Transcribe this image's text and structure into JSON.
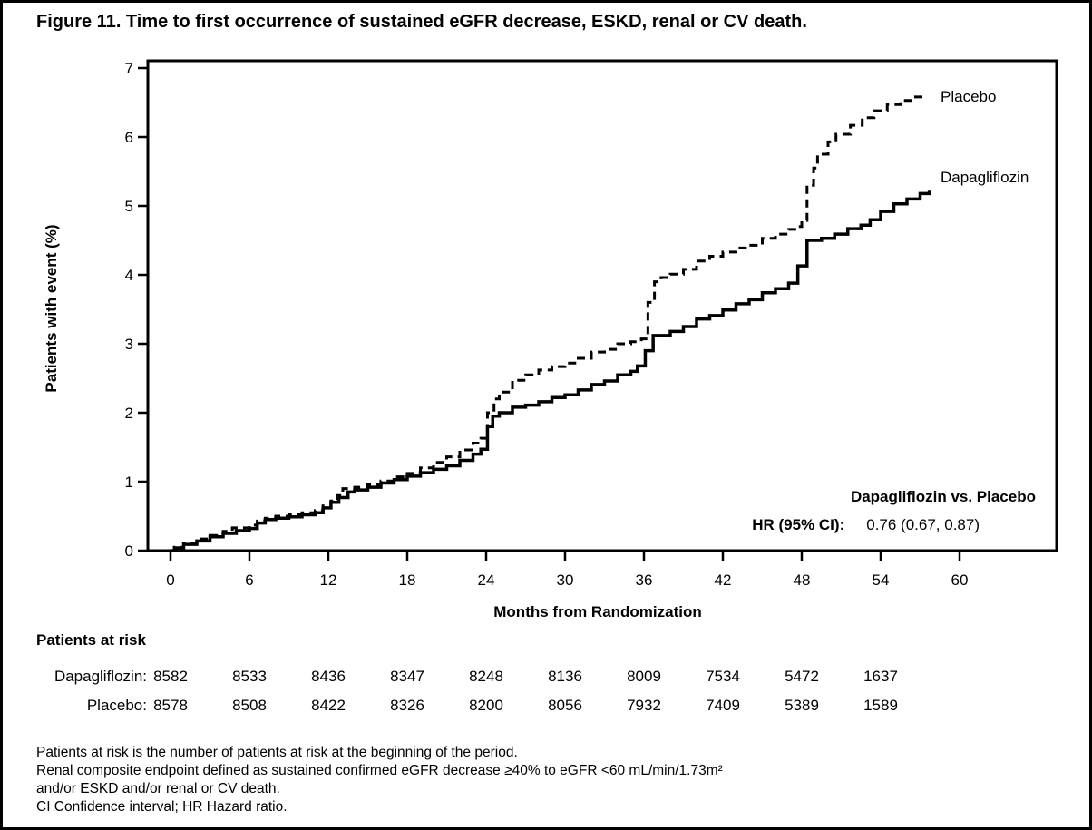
{
  "figure": {
    "title": "Figure 11. Time to first occurrence of sustained eGFR decrease, ESKD, renal or CV death."
  },
  "chart_data": {
    "type": "line",
    "subtype": "step",
    "title": "",
    "xlabel": "Months from Randomization",
    "ylabel": "Patients with event (%)",
    "xlim": [
      0,
      63
    ],
    "ylim": [
      0,
      7
    ],
    "x_ticks": [
      0,
      6,
      12,
      18,
      24,
      30,
      36,
      42,
      48,
      54,
      60
    ],
    "y_ticks": [
      0,
      1,
      2,
      3,
      4,
      5,
      6,
      7
    ],
    "grid": false,
    "legend_position": "right-of-curve-ends",
    "series": [
      {
        "name": "Placebo",
        "line_style": "dashed",
        "color": "#000000",
        "points": [
          [
            0,
            0
          ],
          [
            0.3,
            0.05
          ],
          [
            1,
            0.1
          ],
          [
            2,
            0.17
          ],
          [
            3,
            0.22
          ],
          [
            4,
            0.28
          ],
          [
            4.7,
            0.33
          ],
          [
            6,
            0.37
          ],
          [
            6.6,
            0.43
          ],
          [
            7.2,
            0.47
          ],
          [
            8,
            0.5
          ],
          [
            9,
            0.53
          ],
          [
            10,
            0.55
          ],
          [
            11,
            0.58
          ],
          [
            11.6,
            0.65
          ],
          [
            12.2,
            0.72
          ],
          [
            12.7,
            0.8
          ],
          [
            13.1,
            0.9
          ],
          [
            14,
            0.92
          ],
          [
            15,
            0.96
          ],
          [
            16,
            1.01
          ],
          [
            17,
            1.07
          ],
          [
            18,
            1.12
          ],
          [
            19,
            1.2
          ],
          [
            20,
            1.28
          ],
          [
            21,
            1.36
          ],
          [
            22,
            1.46
          ],
          [
            23,
            1.56
          ],
          [
            23.6,
            1.63
          ],
          [
            24.1,
            2.0
          ],
          [
            24.6,
            2.2
          ],
          [
            25,
            2.3
          ],
          [
            26,
            2.47
          ],
          [
            27,
            2.55
          ],
          [
            28,
            2.62
          ],
          [
            29,
            2.67
          ],
          [
            30,
            2.72
          ],
          [
            31,
            2.79
          ],
          [
            32,
            2.88
          ],
          [
            33,
            2.92
          ],
          [
            34,
            3.0
          ],
          [
            35,
            3.03
          ],
          [
            35.8,
            3.07
          ],
          [
            36.3,
            3.6
          ],
          [
            36.8,
            3.9
          ],
          [
            37.3,
            3.96
          ],
          [
            38,
            4.01
          ],
          [
            39,
            4.08
          ],
          [
            40,
            4.2
          ],
          [
            41,
            4.27
          ],
          [
            42,
            4.33
          ],
          [
            43,
            4.39
          ],
          [
            44,
            4.43
          ],
          [
            45,
            4.53
          ],
          [
            46,
            4.59
          ],
          [
            47,
            4.66
          ],
          [
            47.6,
            4.7
          ],
          [
            48,
            4.79
          ],
          [
            48.4,
            5.3
          ],
          [
            48.9,
            5.55
          ],
          [
            49.2,
            5.75
          ],
          [
            50,
            5.93
          ],
          [
            50.6,
            6.04
          ],
          [
            51.7,
            6.17
          ],
          [
            52.6,
            6.28
          ],
          [
            53.5,
            6.38
          ],
          [
            54.5,
            6.47
          ],
          [
            55.5,
            6.53
          ],
          [
            56.5,
            6.58
          ],
          [
            57.4,
            6.6
          ]
        ]
      },
      {
        "name": "Dapagliflozin",
        "line_style": "solid",
        "color": "#000000",
        "points": [
          [
            0,
            0
          ],
          [
            0.3,
            0.04
          ],
          [
            1,
            0.09
          ],
          [
            2,
            0.14
          ],
          [
            3,
            0.2
          ],
          [
            4,
            0.25
          ],
          [
            5,
            0.29
          ],
          [
            6,
            0.32
          ],
          [
            6.6,
            0.4
          ],
          [
            7.2,
            0.45
          ],
          [
            8,
            0.47
          ],
          [
            9,
            0.49
          ],
          [
            10,
            0.52
          ],
          [
            11,
            0.55
          ],
          [
            11.6,
            0.62
          ],
          [
            12.2,
            0.7
          ],
          [
            12.8,
            0.77
          ],
          [
            13.5,
            0.85
          ],
          [
            14,
            0.88
          ],
          [
            15,
            0.92
          ],
          [
            16,
            0.98
          ],
          [
            17,
            1.03
          ],
          [
            18,
            1.08
          ],
          [
            19,
            1.13
          ],
          [
            20,
            1.18
          ],
          [
            21,
            1.23
          ],
          [
            22,
            1.31
          ],
          [
            23,
            1.4
          ],
          [
            23.6,
            1.47
          ],
          [
            24.1,
            1.8
          ],
          [
            24.5,
            1.95
          ],
          [
            25,
            2.0
          ],
          [
            26,
            2.08
          ],
          [
            27,
            2.11
          ],
          [
            28,
            2.16
          ],
          [
            29,
            2.22
          ],
          [
            30,
            2.26
          ],
          [
            31,
            2.33
          ],
          [
            32,
            2.41
          ],
          [
            33,
            2.46
          ],
          [
            34,
            2.55
          ],
          [
            35,
            2.6
          ],
          [
            35.5,
            2.68
          ],
          [
            36.1,
            2.9
          ],
          [
            36.7,
            3.12
          ],
          [
            38,
            3.18
          ],
          [
            39,
            3.25
          ],
          [
            40,
            3.36
          ],
          [
            41,
            3.41
          ],
          [
            42,
            3.49
          ],
          [
            43,
            3.58
          ],
          [
            44,
            3.64
          ],
          [
            45,
            3.74
          ],
          [
            46,
            3.8
          ],
          [
            47,
            3.88
          ],
          [
            47.7,
            4.13
          ],
          [
            48.4,
            4.5
          ],
          [
            49.5,
            4.53
          ],
          [
            50.5,
            4.59
          ],
          [
            51.5,
            4.67
          ],
          [
            52.5,
            4.72
          ],
          [
            53.2,
            4.8
          ],
          [
            54,
            4.92
          ],
          [
            55,
            5.03
          ],
          [
            56,
            5.1
          ],
          [
            57,
            5.18
          ],
          [
            57.7,
            5.22
          ]
        ]
      }
    ],
    "annotation": {
      "comparison": "Dapagliflozin vs. Placebo",
      "hr_label": "HR (95% CI):",
      "hr_value": "0.76 (0.67, 0.87)"
    }
  },
  "at_risk": {
    "header": "Patients at risk",
    "months": [
      0,
      6,
      12,
      18,
      24,
      30,
      36,
      42,
      48,
      54
    ],
    "rows": [
      {
        "label": "Dapagliflozin:",
        "values": [
          8582,
          8533,
          8436,
          8347,
          8248,
          8136,
          8009,
          7534,
          5472,
          1637
        ]
      },
      {
        "label": "Placebo:",
        "values": [
          8578,
          8508,
          8422,
          8326,
          8200,
          8056,
          7932,
          7409,
          5389,
          1589
        ]
      }
    ]
  },
  "footnotes": [
    "Patients at risk is the number of patients at risk at the beginning of the period.",
    "Renal composite endpoint defined as sustained confirmed eGFR decrease ≥40% to eGFR <60 mL/min/1.73m²",
    "and/or ESKD and/or renal or CV death.",
    "CI Confidence interval; HR Hazard ratio."
  ]
}
